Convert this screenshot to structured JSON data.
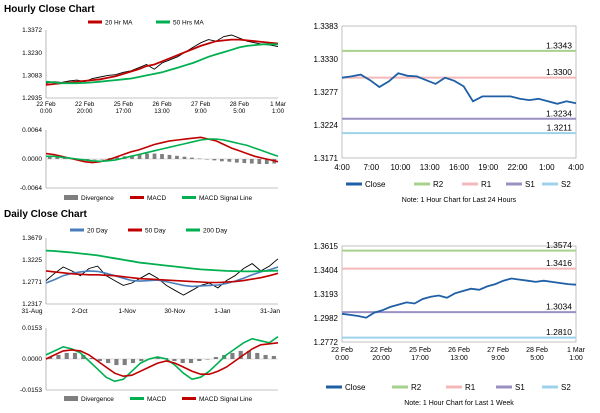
{
  "sections": {
    "hourly_title": "Hourly Close Chart",
    "daily_title": "Daily Close Chart"
  },
  "chart_data": [
    {
      "id": "hourly_price",
      "type": "line",
      "x_ticks": [
        "22 Feb\n0:00",
        "22 Feb\n20:00",
        "25 Feb\n17:00",
        "26 Feb\n13:00",
        "27 Feb\n9:00",
        "28 Feb\n5:00",
        "1 Mar\n1:00"
      ],
      "y_ticks": [
        "1.3372",
        "1.3230",
        "1.3083",
        "1.2935"
      ],
      "ylim": [
        1.2935,
        1.3372
      ],
      "series": [
        {
          "name": "",
          "color": "#000000",
          "values": [
            1.303,
            1.304,
            1.3035,
            1.3045,
            1.305,
            1.304,
            1.306,
            1.307,
            1.308,
            1.3085,
            1.31,
            1.311,
            1.313,
            1.315,
            1.312,
            1.316,
            1.318,
            1.32,
            1.323,
            1.326,
            1.329,
            1.331,
            1.33,
            1.333,
            1.334,
            1.332,
            1.33,
            1.329,
            1.328,
            1.3275,
            1.3265
          ]
        },
        {
          "name": "20 Hr MA",
          "color": "#c00000",
          "values": [
            1.302,
            1.3025,
            1.303,
            1.3035,
            1.304,
            1.3045,
            1.305,
            1.3055,
            1.3065,
            1.3075,
            1.309,
            1.3105,
            1.312,
            1.314,
            1.315,
            1.317,
            1.319,
            1.321,
            1.323,
            1.325,
            1.327,
            1.3285,
            1.33,
            1.3305,
            1.331,
            1.331,
            1.3305,
            1.33,
            1.3295,
            1.329,
            1.3285
          ]
        },
        {
          "name": "50 Hrs MA",
          "color": "#00b050",
          "values": [
            1.304,
            1.3035,
            1.303,
            1.303,
            1.303,
            1.3032,
            1.3035,
            1.304,
            1.3045,
            1.305,
            1.3055,
            1.306,
            1.307,
            1.308,
            1.309,
            1.31,
            1.3115,
            1.313,
            1.3145,
            1.316,
            1.318,
            1.32,
            1.3215,
            1.323,
            1.3245,
            1.326,
            1.327,
            1.3275,
            1.328,
            1.328,
            1.328
          ]
        }
      ]
    },
    {
      "id": "hourly_macd",
      "type": "line",
      "y_ticks": [
        "0.0064",
        "0.0000",
        "-0.0064"
      ],
      "ylim": [
        -0.0064,
        0.0064
      ],
      "histogram": [
        0.0006,
        0.0004,
        0.0002,
        0.0001,
        -0.0001,
        -0.0002,
        -0.0001,
        0.0,
        0.0002,
        0.0004,
        0.0006,
        0.0008,
        0.001,
        0.0012,
        0.0012,
        0.0011,
        0.0009,
        0.0007,
        0.0005,
        0.0003,
        0.0001,
        -0.0001,
        -0.0003,
        -0.0005,
        -0.0006,
        -0.0008,
        -0.0009,
        -0.001,
        -0.0011,
        -0.0011,
        -0.001
      ],
      "series": [
        {
          "name": "MACD",
          "color": "#c00000",
          "values": [
            0.0012,
            0.001,
            0.0006,
            0.0002,
            -0.0002,
            -0.0006,
            -0.0008,
            -0.0006,
            -0.0002,
            0.0004,
            0.001,
            0.0016,
            0.002,
            0.0026,
            0.0032,
            0.0036,
            0.004,
            0.0042,
            0.0044,
            0.0046,
            0.0048,
            0.0044,
            0.004,
            0.0032,
            0.0024,
            0.0018,
            0.0012,
            0.0006,
            0.0002,
            -0.0002,
            -0.0006
          ]
        },
        {
          "name": "MACD Signal Line",
          "color": "#00b050",
          "values": [
            0.0006,
            0.0006,
            0.0004,
            0.0002,
            0.0,
            -0.0002,
            -0.0004,
            -0.0005,
            -0.0004,
            -0.0002,
            0.0002,
            0.0006,
            0.001,
            0.0014,
            0.0018,
            0.0022,
            0.0026,
            0.003,
            0.0034,
            0.0038,
            0.0042,
            0.0044,
            0.0044,
            0.0042,
            0.0038,
            0.0034,
            0.003,
            0.0024,
            0.0018,
            0.0012,
            0.0006
          ]
        }
      ],
      "legend": [
        {
          "name": "Divergence",
          "color": "#7f7f7f"
        },
        {
          "name": "MACD",
          "color": "#c00000"
        },
        {
          "name": "MACD Signal Line",
          "color": "#00b050"
        }
      ]
    },
    {
      "id": "hourly_24h",
      "type": "line",
      "x_ticks": [
        "4:00",
        "7:00",
        "10:00",
        "13:00",
        "16:00",
        "19:00",
        "22:00",
        "1:00",
        "4:00"
      ],
      "y_ticks": [
        "1.3383",
        "1.3330",
        "1.3277",
        "1.3224",
        "1.3171"
      ],
      "ylim": [
        1.3171,
        1.3383
      ],
      "series": [
        {
          "name": "Close",
          "color": "#1f5fa6",
          "values": [
            1.33,
            1.3302,
            1.3305,
            1.3296,
            1.3285,
            1.3294,
            1.3307,
            1.3303,
            1.3302,
            1.3296,
            1.329,
            1.33,
            1.3295,
            1.3286,
            1.3262,
            1.327,
            1.327,
            1.327,
            1.327,
            1.3266,
            1.3264,
            1.3266,
            1.3262,
            1.3258,
            1.3262,
            1.3259
          ]
        }
      ],
      "levels": [
        {
          "name": "R2",
          "value": 1.3343,
          "label": "1.3343",
          "color": "#a9d18e"
        },
        {
          "name": "R1",
          "value": 1.33,
          "label": "1.3300",
          "color": "#f4b8b8"
        },
        {
          "name": "S1",
          "value": 1.3234,
          "label": "1.3234",
          "color": "#9b8fc4"
        },
        {
          "name": "S2",
          "value": 1.3211,
          "label": "1.3211",
          "color": "#9dd3ea"
        }
      ],
      "note": "Note: 1 Hour Chart for Last 24 Hours"
    },
    {
      "id": "daily_price",
      "type": "line",
      "x_ticks": [
        "31-Aug",
        "2-Oct",
        "1-Nov",
        "30-Nov",
        "1-Jan",
        "31-Jan"
      ],
      "y_ticks": [
        "1.3679",
        "1.3225",
        "1.2771",
        "1.2317"
      ],
      "ylim": [
        1.2317,
        1.3679
      ],
      "series": [
        {
          "name": "",
          "color": "#000000",
          "values": [
            1.28,
            1.295,
            1.308,
            1.3,
            1.29,
            1.305,
            1.31,
            1.29,
            1.28,
            1.27,
            1.275,
            1.285,
            1.295,
            1.285,
            1.27,
            1.26,
            1.25,
            1.26,
            1.27,
            1.275,
            1.265,
            1.28,
            1.29,
            1.305,
            1.315,
            1.3,
            1.31,
            1.325
          ]
        },
        {
          "name": "20 Day",
          "color": "#4a7ebb",
          "values": [
            1.275,
            1.282,
            1.29,
            1.295,
            1.298,
            1.3,
            1.299,
            1.295,
            1.29,
            1.285,
            1.28,
            1.279,
            1.28,
            1.281,
            1.278,
            1.274,
            1.27,
            1.268,
            1.269,
            1.27,
            1.271,
            1.274,
            1.279,
            1.285,
            1.292,
            1.298,
            1.302,
            1.308
          ]
        },
        {
          "name": "50 Day",
          "color": "#c00000",
          "values": [
            1.3,
            1.298,
            1.296,
            1.294,
            1.293,
            1.292,
            1.292,
            1.291,
            1.29,
            1.288,
            1.286,
            1.284,
            1.283,
            1.282,
            1.281,
            1.28,
            1.279,
            1.278,
            1.277,
            1.276,
            1.276,
            1.277,
            1.278,
            1.28,
            1.283,
            1.286,
            1.29,
            1.295
          ]
        },
        {
          "name": "200 Day",
          "color": "#00b050",
          "values": [
            1.342,
            1.341,
            1.3395,
            1.338,
            1.336,
            1.334,
            1.332,
            1.329,
            1.326,
            1.323,
            1.32,
            1.317,
            1.315,
            1.313,
            1.311,
            1.309,
            1.307,
            1.305,
            1.303,
            1.302,
            1.301,
            1.3,
            1.2995,
            1.299,
            1.299,
            1.2995,
            1.3,
            1.3005
          ]
        }
      ]
    },
    {
      "id": "daily_macd",
      "type": "line",
      "y_ticks": [
        "0.0153",
        "0.0000",
        "-0.0153"
      ],
      "ylim": [
        -0.0153,
        0.0153
      ],
      "histogram": [
        0.001,
        0.002,
        0.003,
        0.003,
        0.002,
        0.0005,
        -0.001,
        -0.002,
        -0.003,
        -0.003,
        -0.002,
        -0.001,
        0.0,
        0.001,
        0.0005,
        -0.001,
        -0.002,
        -0.002,
        -0.001,
        0.0,
        0.001,
        0.002,
        0.003,
        0.004,
        0.004,
        0.003,
        0.002,
        0.0015
      ],
      "series": [
        {
          "name": "MACD",
          "color": "#00b050",
          "values": [
            0.002,
            0.004,
            0.006,
            0.005,
            0.003,
            -0.001,
            -0.005,
            -0.009,
            -0.011,
            -0.01,
            -0.006,
            -0.002,
            0.0,
            0.001,
            0.0,
            -0.003,
            -0.007,
            -0.01,
            -0.009,
            -0.006,
            -0.002,
            0.002,
            0.005,
            0.008,
            0.01,
            0.009,
            0.008,
            0.011
          ]
        },
        {
          "name": "MACD Signal Line",
          "color": "#c00000",
          "values": [
            0.0,
            0.002,
            0.004,
            0.0045,
            0.004,
            0.002,
            -0.001,
            -0.004,
            -0.007,
            -0.0085,
            -0.008,
            -0.006,
            -0.004,
            -0.002,
            -0.001,
            -0.002,
            -0.004,
            -0.006,
            -0.0075,
            -0.0075,
            -0.006,
            -0.004,
            -0.001,
            0.002,
            0.005,
            0.007,
            0.0075,
            0.008
          ]
        }
      ],
      "legend": [
        {
          "name": "Divergence",
          "color": "#7f7f7f"
        },
        {
          "name": "MACD",
          "color": "#00b050"
        },
        {
          "name": "MACD Signal Line",
          "color": "#c00000"
        }
      ]
    },
    {
      "id": "daily_week",
      "type": "line",
      "x_ticks": [
        "22 Feb\n0:00",
        "22 Feb\n20:00",
        "25 Feb\n17:00",
        "26 Feb\n13:00",
        "27 Feb\n9:00",
        "28 Feb\n5:00",
        "1 Mar\n1:00"
      ],
      "y_ticks": [
        "1.3615",
        "1.3404",
        "1.3193",
        "1.2982",
        "1.2772"
      ],
      "ylim": [
        1.2772,
        1.3615
      ],
      "series": [
        {
          "name": "Close",
          "color": "#1f5fa6",
          "values": [
            1.302,
            1.301,
            1.3,
            1.2985,
            1.303,
            1.305,
            1.308,
            1.31,
            1.312,
            1.311,
            1.315,
            1.317,
            1.318,
            1.316,
            1.32,
            1.322,
            1.324,
            1.323,
            1.326,
            1.328,
            1.331,
            1.333,
            1.332,
            1.331,
            1.33,
            1.331,
            1.33,
            1.329,
            1.328,
            1.3275
          ]
        }
      ],
      "levels": [
        {
          "name": "R2",
          "value": 1.3574,
          "label": "1.3574",
          "color": "#a9d18e"
        },
        {
          "name": "R1",
          "value": 1.3416,
          "label": "1.3416",
          "color": "#f4b8b8"
        },
        {
          "name": "S1",
          "value": 1.3034,
          "label": "1.3034",
          "color": "#9b8fc4"
        },
        {
          "name": "S2",
          "value": 1.281,
          "label": "1.2810",
          "color": "#9dd3ea"
        }
      ],
      "note": "Note: 1 Hour Chart for Last 1 Week"
    }
  ]
}
